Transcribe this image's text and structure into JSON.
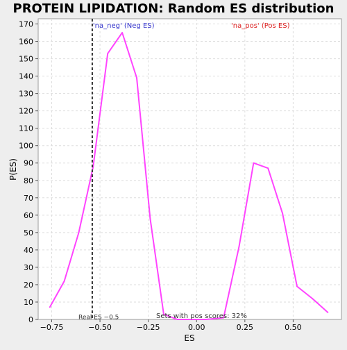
{
  "chart_data": {
    "type": "line",
    "title": "PROTEIN LIPIDATION: Random ES distribution",
    "xlabel": "ES",
    "ylabel": "P(ES)",
    "xlim": [
      -0.82,
      0.75
    ],
    "ylim": [
      0,
      173
    ],
    "x_ticks": [
      -0.75,
      -0.5,
      -0.25,
      0.0,
      0.25,
      0.5
    ],
    "x_tick_labels": [
      "−0.75",
      "−0.50",
      "−0.25",
      "0.00",
      "0.25",
      "0.50"
    ],
    "y_ticks": [
      0,
      10,
      20,
      30,
      40,
      50,
      60,
      70,
      80,
      90,
      100,
      110,
      120,
      130,
      140,
      150,
      160,
      170
    ],
    "grid": true,
    "series": [
      {
        "color": "#ff44ff",
        "x": [
          -0.76,
          -0.685,
          -0.61,
          -0.535,
          -0.46,
          -0.385,
          -0.31,
          -0.24,
          -0.17,
          -0.1,
          -0.02,
          0.05,
          0.14,
          0.22,
          0.295,
          0.37,
          0.445,
          0.52,
          0.6,
          0.68
        ],
        "y": [
          7,
          22,
          50,
          88,
          153,
          165,
          139,
          58,
          3,
          0,
          0,
          0,
          1,
          42,
          90,
          87,
          61,
          19,
          12,
          4
        ]
      }
    ],
    "annotations": {
      "neg_label": "'na_neg' (Neg ES)",
      "pos_label": "'na_pos' (Pos ES)",
      "real_es_label": "Real ES −0.5",
      "real_es_value": -0.54,
      "pos_scores_label": "Sets with pos scores: 32%"
    },
    "colors": {
      "line": "#ff44ff",
      "neg_label": "#3333cc",
      "pos_label": "#dd2222",
      "real_es_line": "#333333"
    }
  }
}
